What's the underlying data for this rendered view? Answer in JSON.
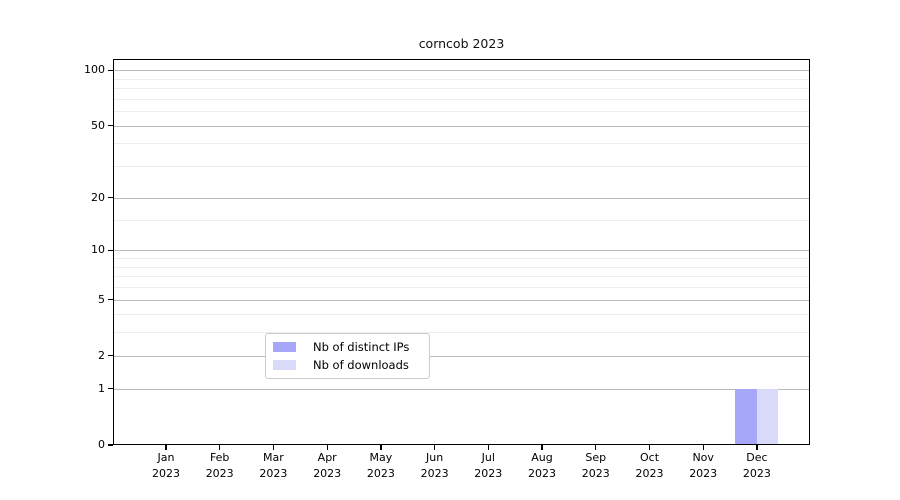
{
  "chart_data": {
    "type": "bar",
    "title": "corncob 2023",
    "categories": [
      {
        "month": "Jan",
        "year": "2023"
      },
      {
        "month": "Feb",
        "year": "2023"
      },
      {
        "month": "Mar",
        "year": "2023"
      },
      {
        "month": "Apr",
        "year": "2023"
      },
      {
        "month": "May",
        "year": "2023"
      },
      {
        "month": "Jun",
        "year": "2023"
      },
      {
        "month": "Jul",
        "year": "2023"
      },
      {
        "month": "Aug",
        "year": "2023"
      },
      {
        "month": "Sep",
        "year": "2023"
      },
      {
        "month": "Oct",
        "year": "2023"
      },
      {
        "month": "Nov",
        "year": "2023"
      },
      {
        "month": "Dec",
        "year": "2023"
      }
    ],
    "series": [
      {
        "name": "Nb of distinct IPs",
        "color": "#a7a7fa",
        "values": [
          0,
          0,
          0,
          0,
          0,
          0,
          0,
          0,
          0,
          0,
          0,
          1
        ]
      },
      {
        "name": "Nb of downloads",
        "color": "#d9d9fa",
        "values": [
          0,
          0,
          0,
          0,
          0,
          0,
          0,
          0,
          0,
          0,
          0,
          1
        ]
      }
    ],
    "yscale": "log1p",
    "ylim": [
      0,
      114.8
    ],
    "y_major_ticks": [
      0,
      1,
      2,
      5,
      10,
      20,
      50,
      100
    ],
    "y_tick_labels": [
      "0",
      "1",
      "2",
      "5",
      "10",
      "20",
      "50",
      "100"
    ],
    "y_minor_ticks": [
      3,
      4,
      6,
      7,
      8,
      9,
      15,
      30,
      40,
      60,
      70,
      80,
      90
    ],
    "xlabel": "",
    "ylabel": "",
    "grid": "horizontal",
    "legend_position": "lower center",
    "colors": {
      "grid_major": "#bbbbbb",
      "grid_minor": "#ededed",
      "spine": "#000000",
      "legend_border": "#cccccc",
      "background": "#ffffff"
    }
  }
}
